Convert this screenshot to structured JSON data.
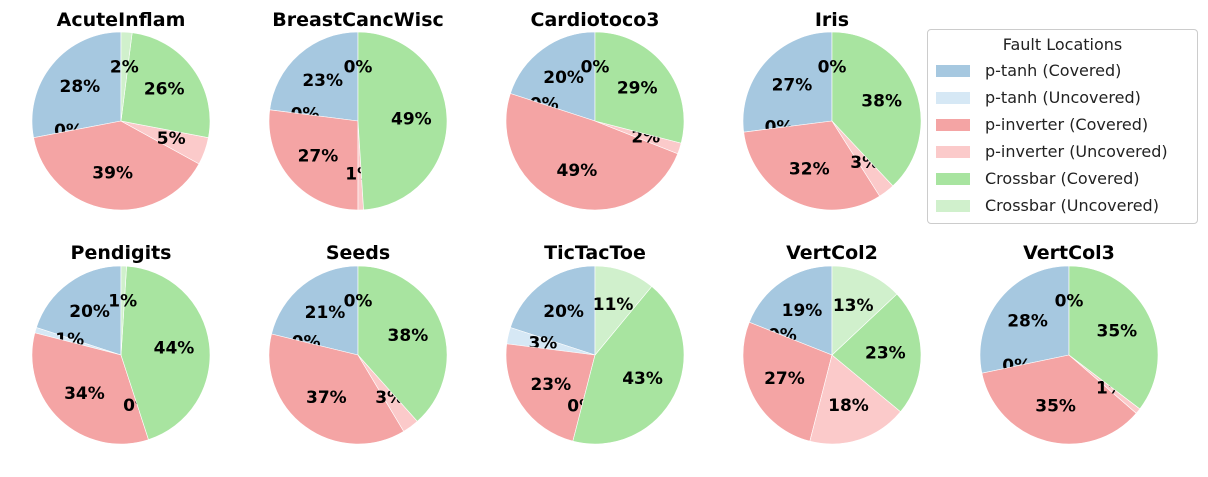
{
  "legend": {
    "title": "Fault Locations",
    "entries": [
      {
        "label": "p-tanh (Covered)",
        "color": "#a6c8e0"
      },
      {
        "label": "p-tanh (Uncovered)",
        "color": "#d6e8f5"
      },
      {
        "label": "p-inverter (Covered)",
        "color": "#f4a4a4"
      },
      {
        "label": "p-inverter (Uncovered)",
        "color": "#fbcaca"
      },
      {
        "label": "Crossbar (Covered)",
        "color": "#a8e4a0"
      },
      {
        "label": "Crossbar (Uncovered)",
        "color": "#d0f0cc"
      }
    ]
  },
  "chart_data": [
    {
      "type": "pie",
      "title": "AcuteInflam",
      "labels": [
        "p-tanh (Covered)",
        "p-tanh (Uncovered)",
        "p-inverter (Covered)",
        "p-inverter (Uncovered)",
        "Crossbar (Covered)",
        "Crossbar (Uncovered)"
      ],
      "values": [
        28,
        0,
        39,
        5,
        26,
        2
      ],
      "value_labels": [
        "28%",
        "0%",
        "39%",
        "5%",
        "26%",
        "2%"
      ]
    },
    {
      "type": "pie",
      "title": "BreastCancWisc",
      "labels": [
        "p-tanh (Covered)",
        "p-tanh (Uncovered)",
        "p-inverter (Covered)",
        "p-inverter (Uncovered)",
        "Crossbar (Covered)",
        "Crossbar (Uncovered)"
      ],
      "values": [
        23,
        0,
        27,
        1,
        49,
        0
      ],
      "value_labels": [
        "23%",
        "0%",
        "27%",
        "1%",
        "49%",
        "0%"
      ]
    },
    {
      "type": "pie",
      "title": "Cardiotoco3",
      "labels": [
        "p-tanh (Covered)",
        "p-tanh (Uncovered)",
        "p-inverter (Covered)",
        "p-inverter (Uncovered)",
        "Crossbar (Covered)",
        "Crossbar (Uncovered)"
      ],
      "values": [
        20,
        0,
        49,
        2,
        29,
        0
      ],
      "value_labels": [
        "20%",
        "0%",
        "49%",
        "2%",
        "29%",
        "0%"
      ]
    },
    {
      "type": "pie",
      "title": "Iris",
      "labels": [
        "p-tanh (Covered)",
        "p-tanh (Uncovered)",
        "p-inverter (Covered)",
        "p-inverter (Uncovered)",
        "Crossbar (Covered)",
        "Crossbar (Uncovered)"
      ],
      "values": [
        27,
        0,
        32,
        3,
        38,
        0
      ],
      "value_labels": [
        "27%",
        "0%",
        "32%",
        "3%",
        "38%",
        "0%"
      ]
    },
    {
      "type": "pie",
      "title": "Pendigits",
      "labels": [
        "p-tanh (Covered)",
        "p-tanh (Uncovered)",
        "p-inverter (Covered)",
        "p-inverter (Uncovered)",
        "Crossbar (Covered)",
        "Crossbar (Uncovered)"
      ],
      "values": [
        20,
        1,
        34,
        0,
        44,
        1
      ],
      "value_labels": [
        "20%",
        "1%",
        "34%",
        "0%",
        "44%",
        "1%"
      ]
    },
    {
      "type": "pie",
      "title": "Seeds",
      "labels": [
        "p-tanh (Covered)",
        "p-tanh (Uncovered)",
        "p-inverter (Covered)",
        "p-inverter (Uncovered)",
        "Crossbar (Covered)",
        "Crossbar (Uncovered)"
      ],
      "values": [
        21,
        0,
        37,
        3,
        38,
        0
      ],
      "value_labels": [
        "21%",
        "0%",
        "37%",
        "3%",
        "38%",
        "0%"
      ]
    },
    {
      "type": "pie",
      "title": "TicTacToe",
      "labels": [
        "p-tanh (Covered)",
        "p-tanh (Uncovered)",
        "p-inverter (Covered)",
        "p-inverter (Uncovered)",
        "Crossbar (Covered)",
        "Crossbar (Uncovered)"
      ],
      "values": [
        20,
        3,
        23,
        0,
        43,
        11
      ],
      "value_labels": [
        "20%",
        "3%",
        "23%",
        "0%",
        "43%",
        "11%"
      ]
    },
    {
      "type": "pie",
      "title": "VertCol2",
      "labels": [
        "p-tanh (Covered)",
        "p-tanh (Uncovered)",
        "p-inverter (Covered)",
        "p-inverter (Uncovered)",
        "Crossbar (Covered)",
        "Crossbar (Uncovered)"
      ],
      "values": [
        19,
        0,
        27,
        18,
        23,
        13
      ],
      "value_labels": [
        "19%",
        "0%",
        "27%",
        "18%",
        "23%",
        "13%"
      ]
    },
    {
      "type": "pie",
      "title": "VertCol3",
      "labels": [
        "p-tanh (Covered)",
        "p-tanh (Uncovered)",
        "p-inverter (Covered)",
        "p-inverter (Uncovered)",
        "Crossbar (Covered)",
        "Crossbar (Uncovered)"
      ],
      "values": [
        28,
        0,
        35,
        1,
        35,
        0
      ],
      "value_labels": [
        "28%",
        "0%",
        "35%",
        "1%",
        "35%",
        "0%"
      ]
    }
  ]
}
